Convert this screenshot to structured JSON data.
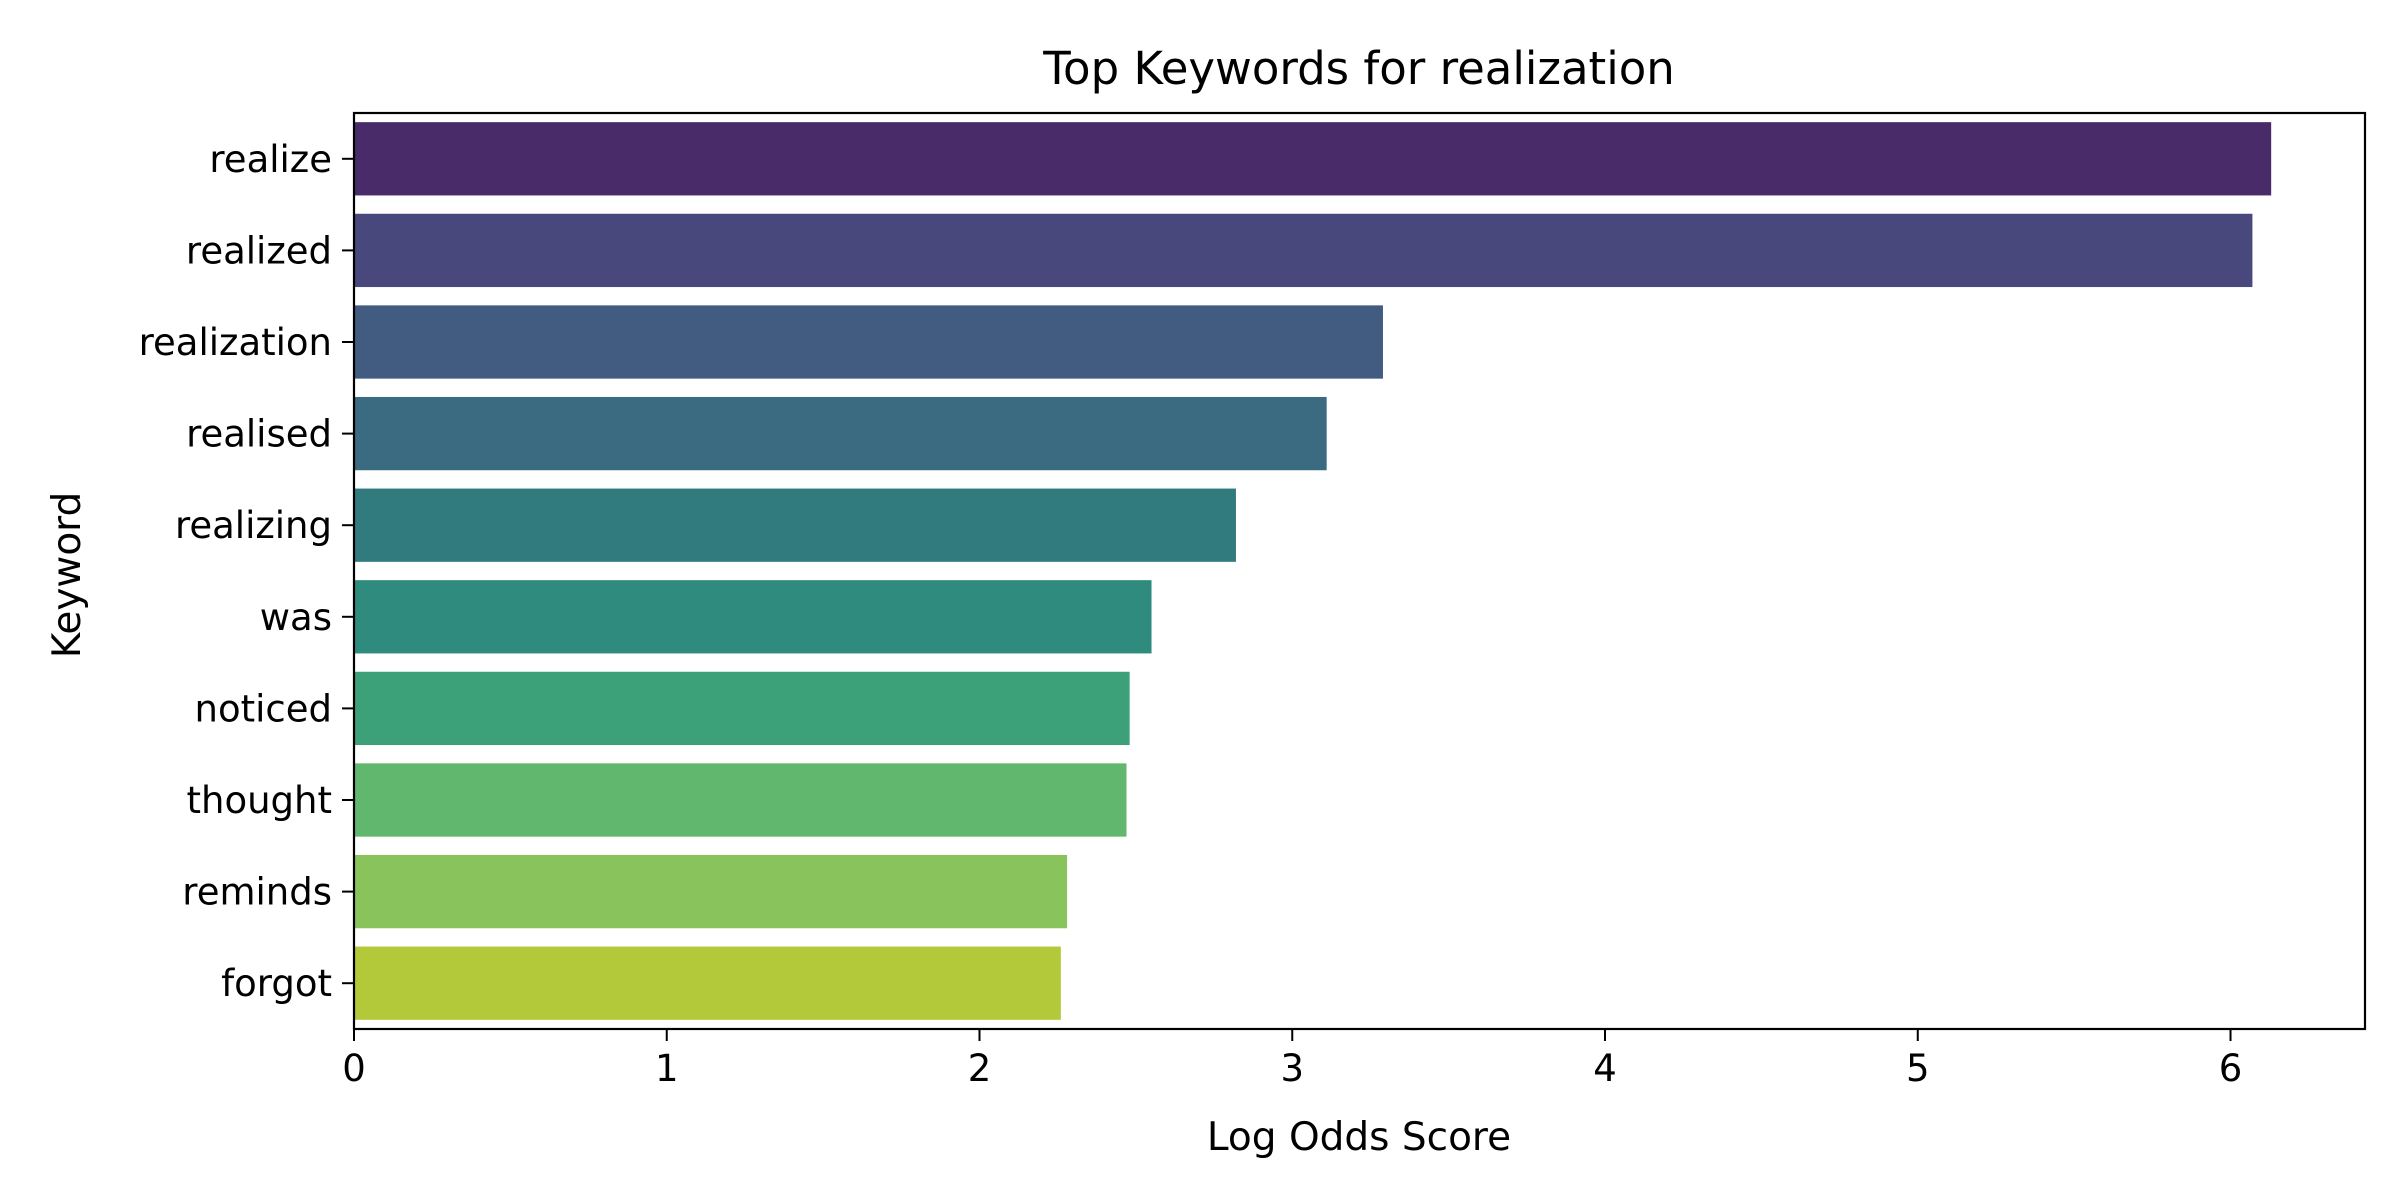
{
  "chart_data": {
    "type": "bar",
    "orientation": "horizontal",
    "title": "Top Keywords for realization",
    "xlabel": "Log Odds Score",
    "ylabel": "Keyword",
    "categories": [
      "realize",
      "realized",
      "realization",
      "realised",
      "realizing",
      "was",
      "noticed",
      "thought",
      "reminds",
      "forgot"
    ],
    "values": [
      6.13,
      6.07,
      3.29,
      3.11,
      2.82,
      2.55,
      2.48,
      2.47,
      2.28,
      2.26
    ],
    "colors": [
      "#482b68",
      "#48487d",
      "#425c81",
      "#3a6b80",
      "#317b7f",
      "#2e8b7e",
      "#3ca178",
      "#62b76e",
      "#89c35c",
      "#b3c93a"
    ],
    "xlim": [
      0,
      6.43
    ],
    "xticks": [
      0,
      1,
      2,
      3,
      4,
      5,
      6
    ],
    "grid": false,
    "legend": "none"
  }
}
